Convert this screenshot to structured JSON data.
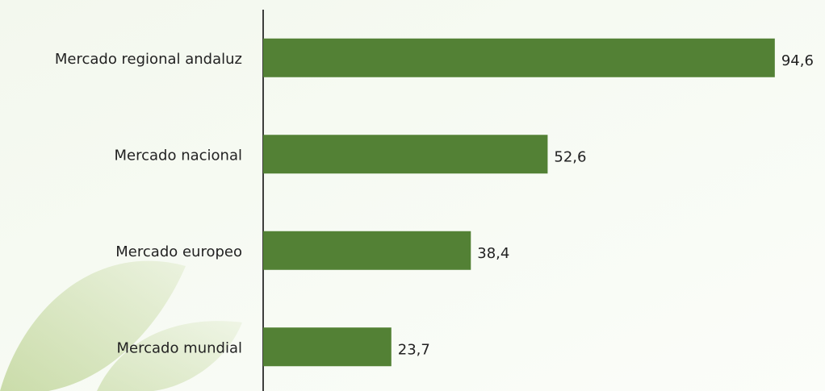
{
  "chart_data": {
    "type": "bar",
    "orientation": "horizontal",
    "categories": [
      "Mercado regional andaluz",
      "Mercado nacional",
      "Mercado europeo",
      "Mercado mundial"
    ],
    "values": [
      94.6,
      52.6,
      38.4,
      23.7
    ],
    "value_labels": [
      "94,6",
      "52,6",
      "38,4",
      "23,7"
    ],
    "color": "#538135",
    "xlim": [
      0,
      100
    ]
  }
}
